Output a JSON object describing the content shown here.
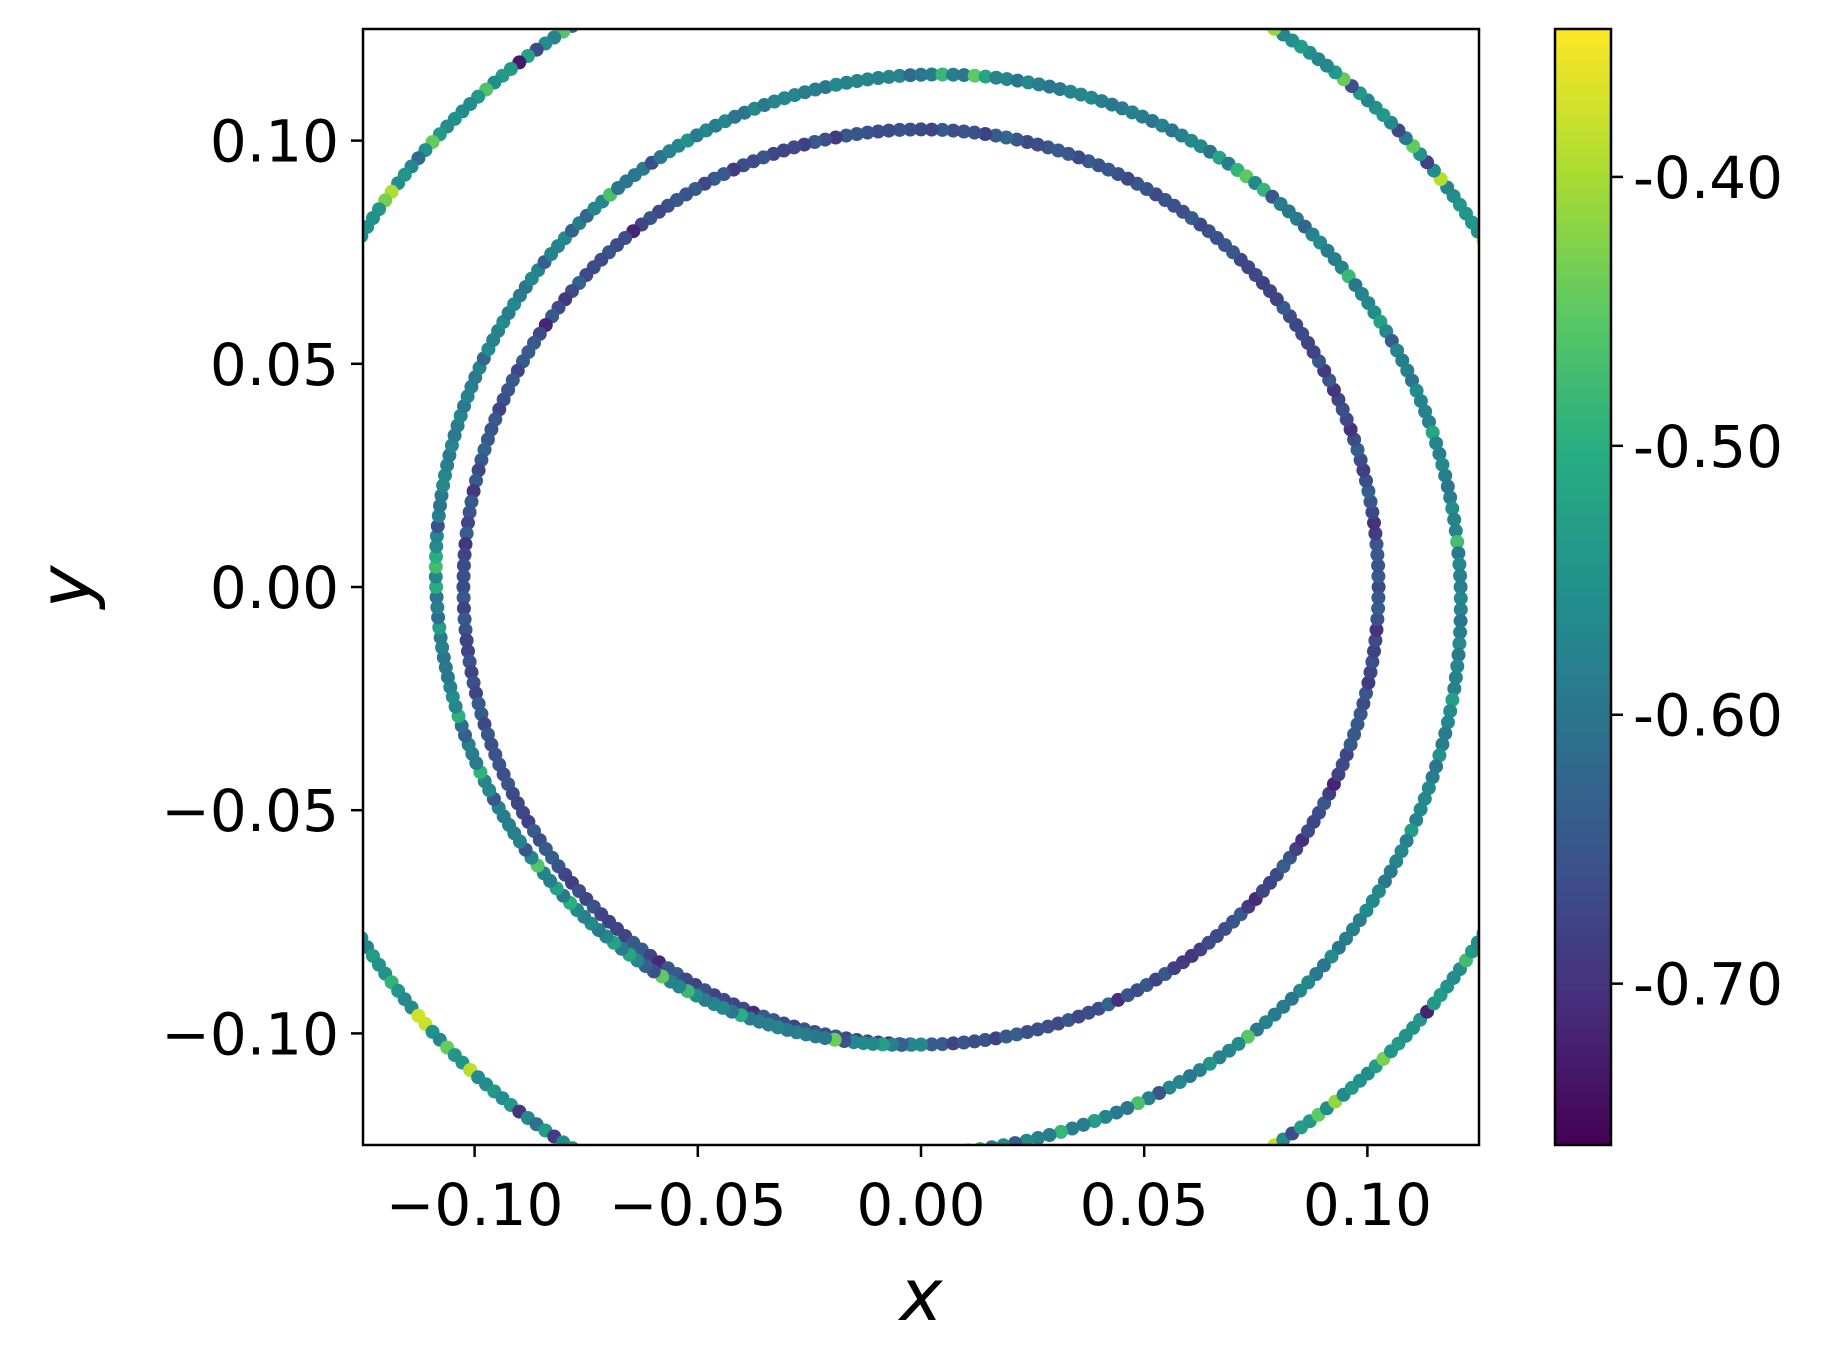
{
  "chart_data": {
    "type": "scatter",
    "title": "",
    "xlabel": "x",
    "ylabel": "y",
    "xlim": [
      -0.125,
      0.125
    ],
    "ylim": [
      -0.125,
      0.125
    ],
    "x_ticks": [
      -0.1,
      -0.05,
      0.0,
      0.05,
      0.1
    ],
    "x_tick_labels": [
      "−0.10",
      "−0.05",
      "0.00",
      "0.05",
      "0.10"
    ],
    "y_ticks": [
      -0.1,
      -0.05,
      0.0,
      0.05,
      0.1
    ],
    "y_tick_labels": [
      "−0.10",
      "−0.05",
      "0.00",
      "0.05",
      "0.10"
    ],
    "grid": false,
    "colormap": "viridis",
    "colorbar": {
      "vmin": -0.76,
      "vmax": -0.345,
      "ticks": [
        -0.4,
        -0.5,
        -0.6,
        -0.7
      ],
      "tick_labels": [
        "-0.40",
        "-0.50",
        "-0.60",
        "-0.70"
      ]
    },
    "series": [
      {
        "shape": "ring",
        "center": [
          0.0,
          0.0
        ],
        "radius": 0.1025,
        "color_value_range": [
          -0.72,
          -0.62
        ],
        "typical_color_value": -0.66
      },
      {
        "shape": "spiral",
        "center": [
          0.0,
          0.0
        ],
        "radius_start": 0.1025,
        "radius_end": 0.127,
        "start_angle_deg": -90,
        "sweep_deg": -360,
        "color_value_range": [
          -0.66,
          -0.44
        ],
        "typical_color_value": -0.58
      },
      {
        "shape": "ring",
        "center": [
          0.0,
          0.0
        ],
        "radius": 0.148,
        "color_value_range": [
          -0.74,
          -0.36
        ],
        "typical_color_value": -0.55
      }
    ]
  }
}
